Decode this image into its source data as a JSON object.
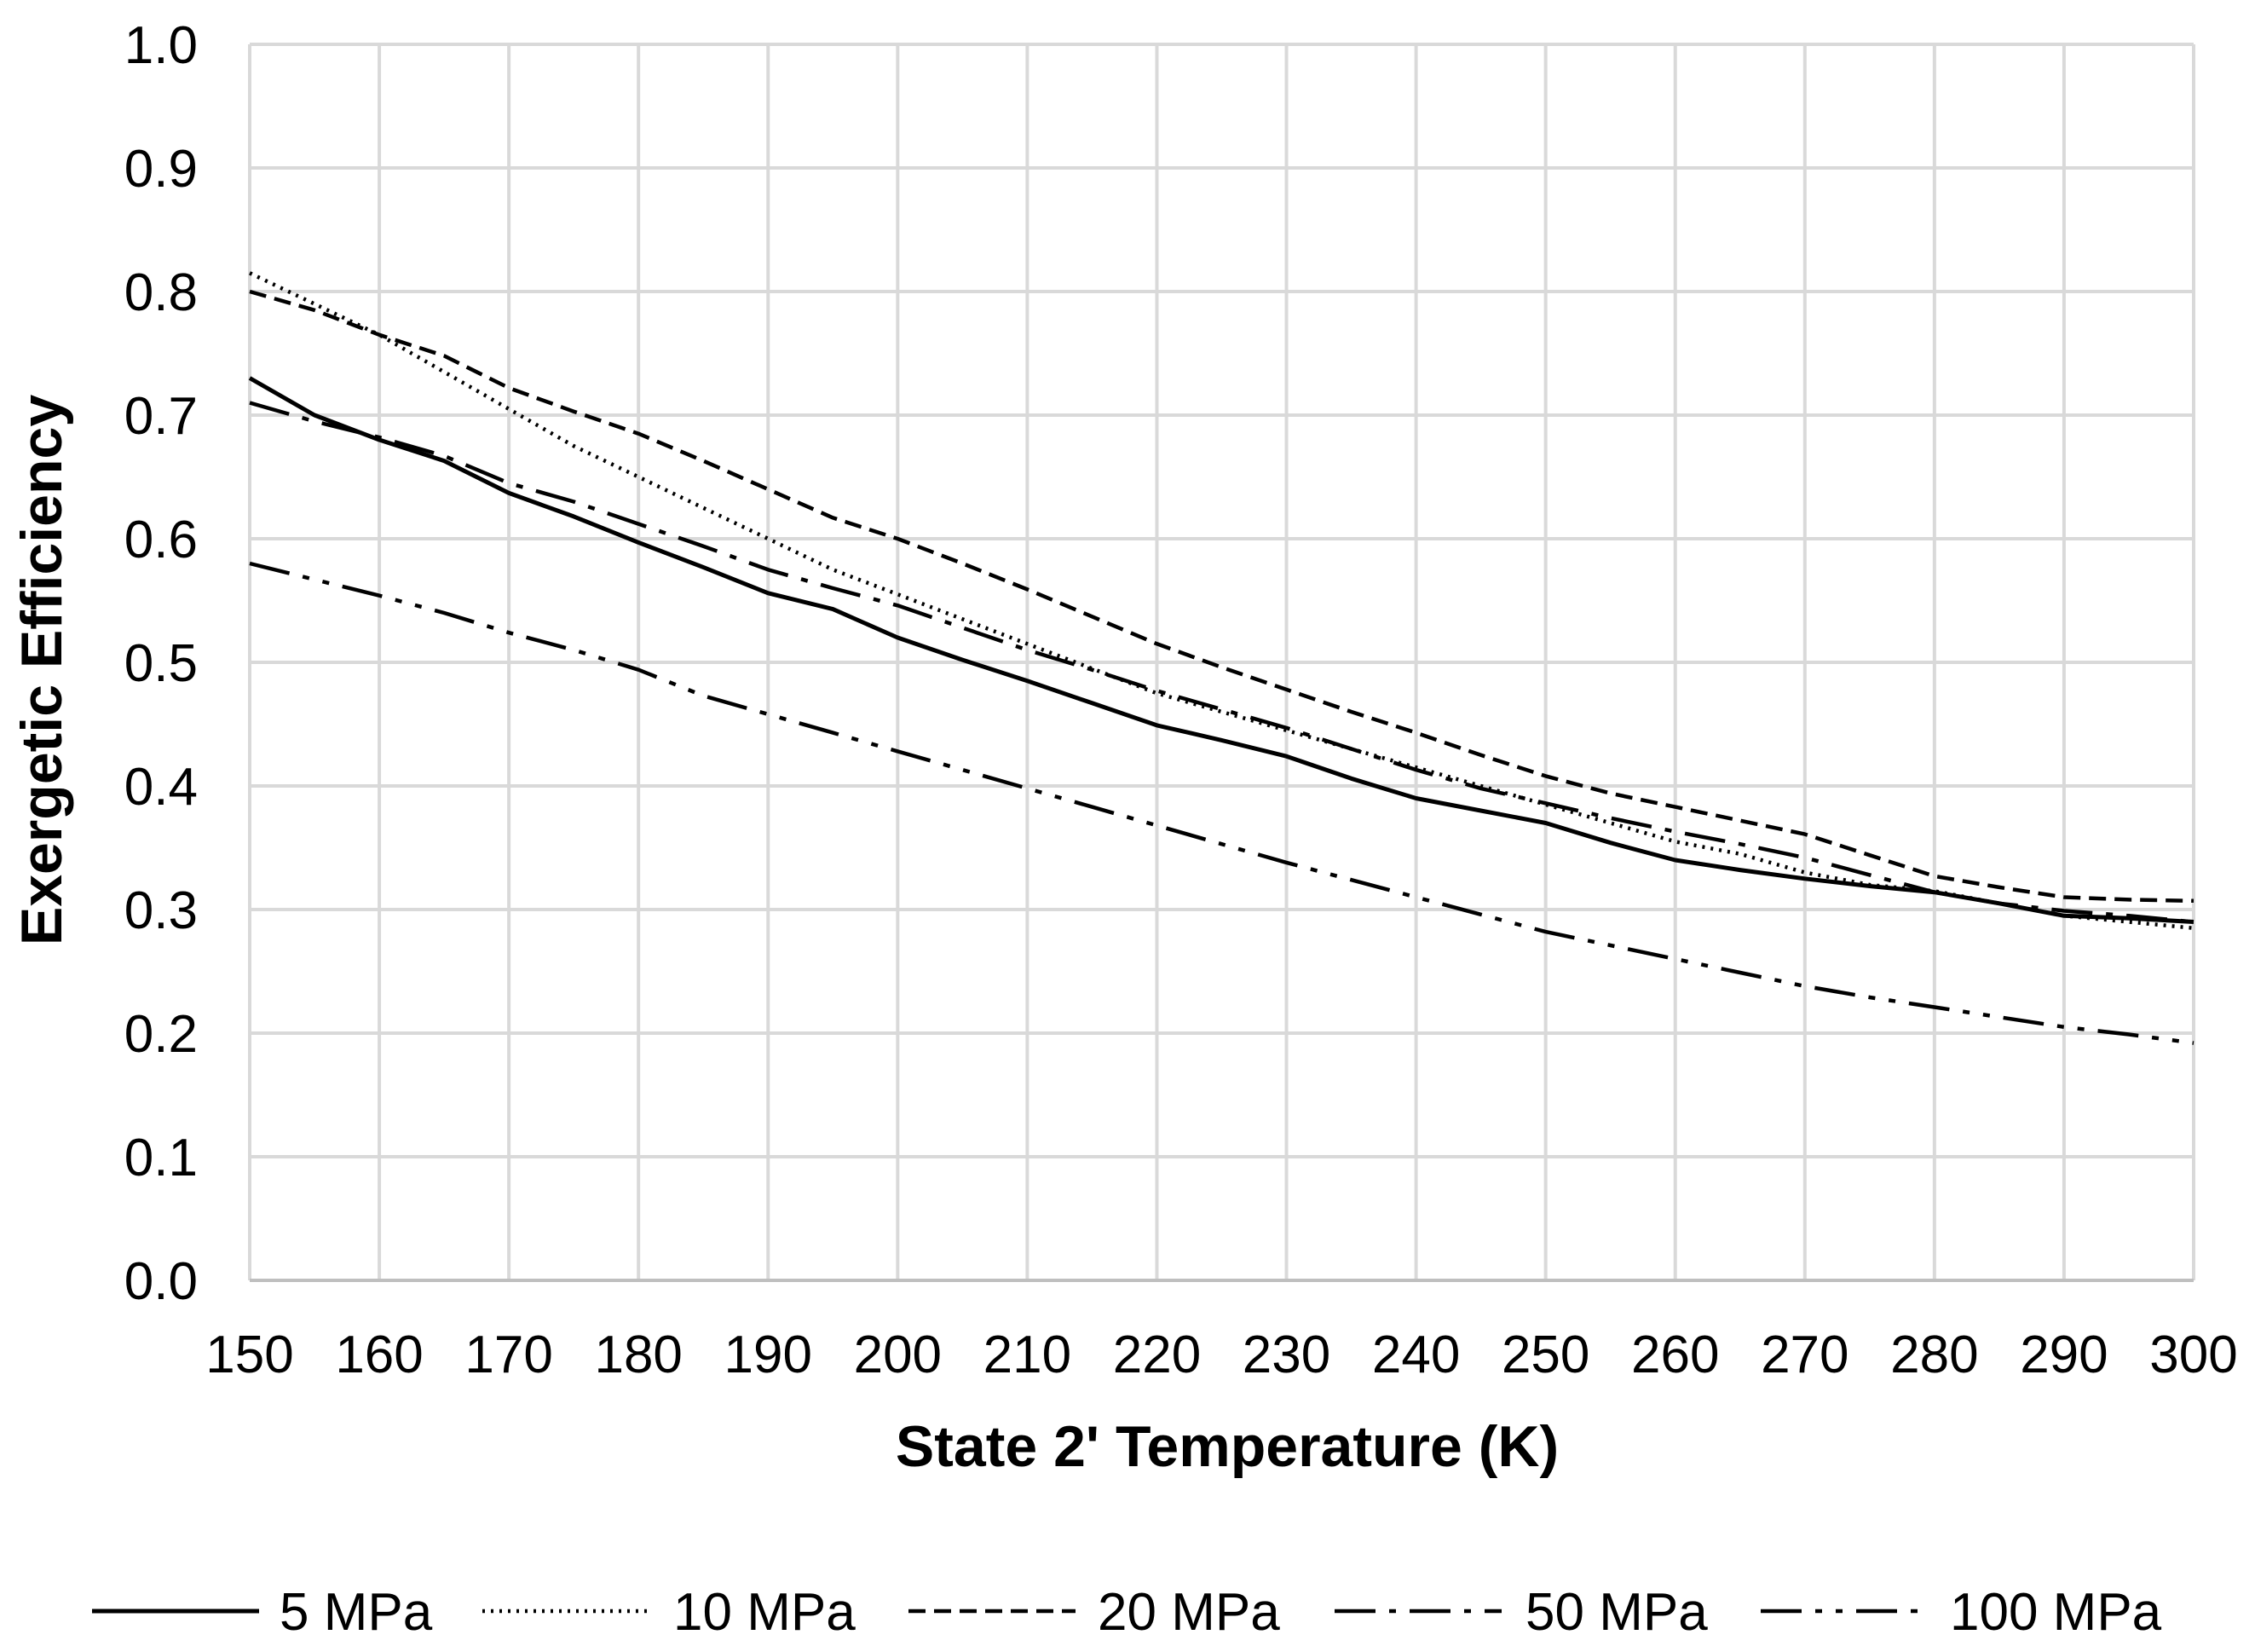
{
  "chart_data": {
    "type": "line",
    "title": "",
    "xlabel": "State 2' Temperature (K)",
    "ylabel": "Exergetic Efficiency",
    "xlim": [
      150,
      300
    ],
    "ylim": [
      0.0,
      1.0
    ],
    "x_ticks": [
      "150",
      "160",
      "170",
      "180",
      "190",
      "200",
      "210",
      "220",
      "230",
      "240",
      "250",
      "260",
      "270",
      "280",
      "290",
      "300"
    ],
    "y_ticks": [
      "0.0",
      "0.1",
      "0.2",
      "0.3",
      "0.4",
      "0.5",
      "0.6",
      "0.7",
      "0.8",
      "0.9",
      "1.0"
    ],
    "grid": true,
    "legend_position": "bottom",
    "x": [
      150,
      155,
      160,
      165,
      170,
      175,
      180,
      185,
      190,
      195,
      200,
      205,
      210,
      215,
      220,
      225,
      230,
      235,
      240,
      245,
      250,
      255,
      260,
      265,
      270,
      275,
      280,
      285,
      290,
      295,
      300
    ],
    "series": [
      {
        "name": "5 MPa",
        "dash": "solid",
        "values": [
          0.73,
          0.7,
          0.68,
          0.663,
          0.637,
          0.618,
          0.597,
          0.577,
          0.556,
          0.543,
          0.52,
          0.502,
          0.485,
          0.467,
          0.449,
          0.437,
          0.424,
          0.406,
          0.39,
          0.38,
          0.37,
          0.354,
          0.34,
          0.332,
          0.325,
          0.319,
          0.314,
          0.305,
          0.295,
          0.293,
          0.29
        ]
      },
      {
        "name": "10 MPa",
        "dash": "dot",
        "values": [
          0.815,
          0.79,
          0.765,
          0.735,
          0.705,
          0.675,
          0.65,
          0.625,
          0.6,
          0.575,
          0.555,
          0.535,
          0.515,
          0.495,
          0.475,
          0.46,
          0.445,
          0.43,
          0.415,
          0.4,
          0.385,
          0.37,
          0.355,
          0.345,
          0.33,
          0.32,
          0.315,
          0.305,
          0.295,
          0.29,
          0.285
        ]
      },
      {
        "name": "20 MPa",
        "dash": "dash",
        "values": [
          0.8,
          0.785,
          0.765,
          0.748,
          0.722,
          0.703,
          0.685,
          0.663,
          0.64,
          0.617,
          0.6,
          0.58,
          0.559,
          0.537,
          0.515,
          0.496,
          0.478,
          0.46,
          0.443,
          0.425,
          0.408,
          0.394,
          0.383,
          0.372,
          0.361,
          0.344,
          0.327,
          0.318,
          0.31,
          0.308,
          0.307
        ]
      },
      {
        "name": "50 MPa",
        "dash": "longdashdot",
        "values": [
          0.71,
          0.695,
          0.682,
          0.667,
          0.645,
          0.63,
          0.612,
          0.594,
          0.575,
          0.56,
          0.546,
          0.528,
          0.51,
          0.494,
          0.477,
          0.462,
          0.447,
          0.43,
          0.413,
          0.398,
          0.386,
          0.374,
          0.363,
          0.353,
          0.342,
          0.328,
          0.314,
          0.305,
          0.299,
          0.295,
          0.29
        ]
      },
      {
        "name": "100 MPa",
        "dash": "longdashdotdot",
        "values": [
          0.58,
          0.567,
          0.554,
          0.54,
          0.524,
          0.51,
          0.494,
          0.473,
          0.458,
          0.443,
          0.428,
          0.413,
          0.398,
          0.383,
          0.368,
          0.353,
          0.338,
          0.324,
          0.31,
          0.296,
          0.282,
          0.271,
          0.26,
          0.249,
          0.238,
          0.229,
          0.221,
          0.213,
          0.205,
          0.199,
          0.192
        ]
      }
    ]
  }
}
